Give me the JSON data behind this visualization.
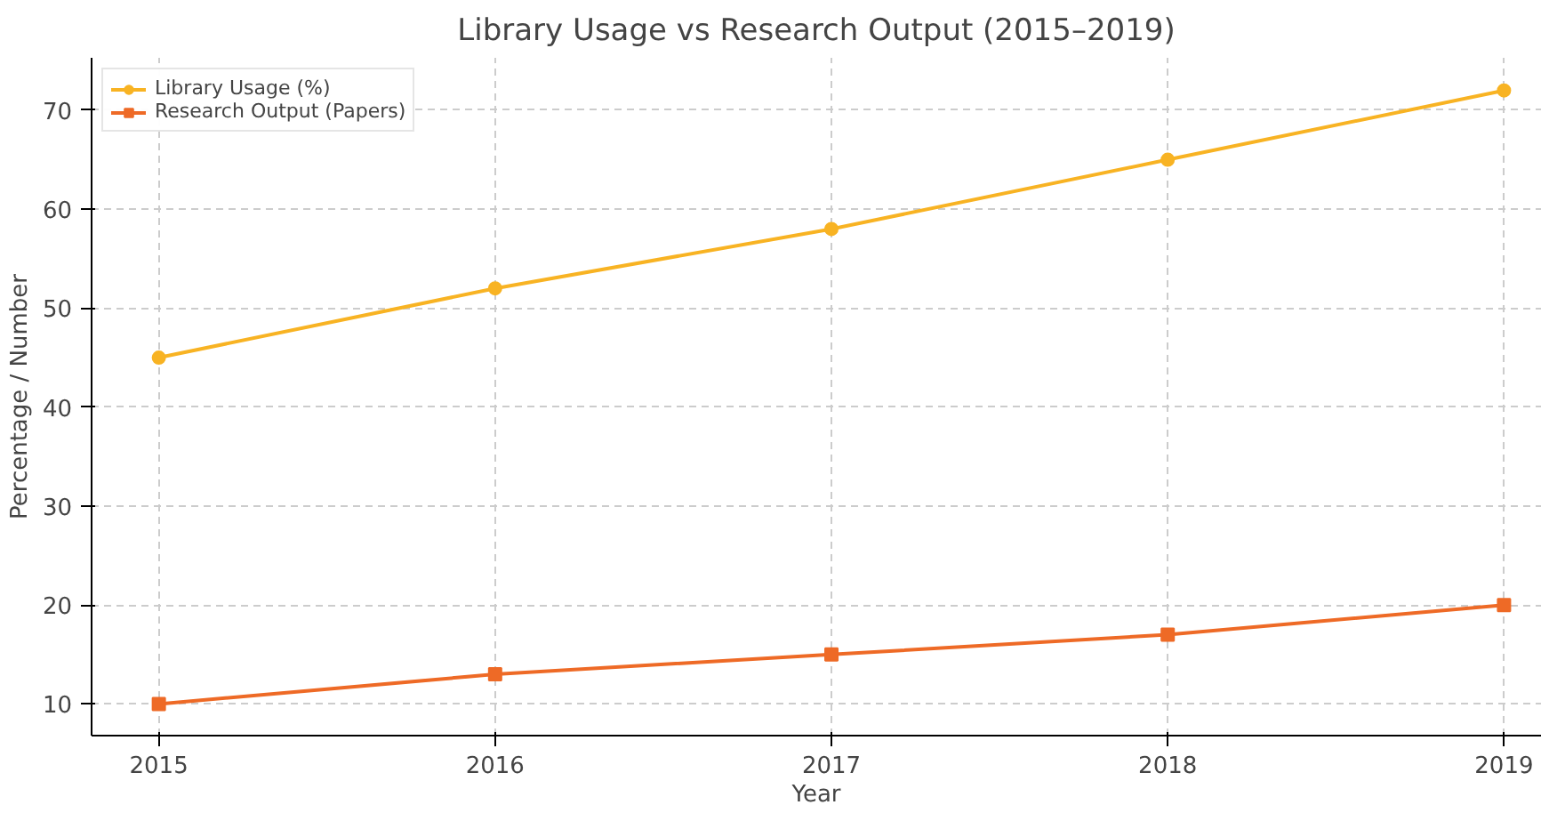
{
  "chart_data": {
    "type": "line",
    "title": "Library Usage vs Research Output (2015–2019)",
    "xlabel": "Year",
    "ylabel": "Percentage / Number",
    "x": [
      2015,
      2016,
      2017,
      2018,
      2019
    ],
    "series": [
      {
        "name": "Library Usage (%)",
        "color": "#f8b323",
        "marker": "circle",
        "values": [
          45,
          52,
          58,
          65,
          72
        ]
      },
      {
        "name": "Research Output (Papers)",
        "color": "#ee6a26",
        "marker": "square",
        "values": [
          10,
          13,
          15,
          17,
          20
        ]
      }
    ],
    "xlim": [
      2014.8,
      2019.11
    ],
    "xticks": [
      2015,
      2016,
      2017,
      2018,
      2019
    ],
    "ylim": [
      6.8,
      75.3
    ],
    "yticks": [
      10,
      20,
      30,
      40,
      50,
      60,
      70
    ],
    "grid": true,
    "legend": "top left",
    "line_style": "solid"
  }
}
